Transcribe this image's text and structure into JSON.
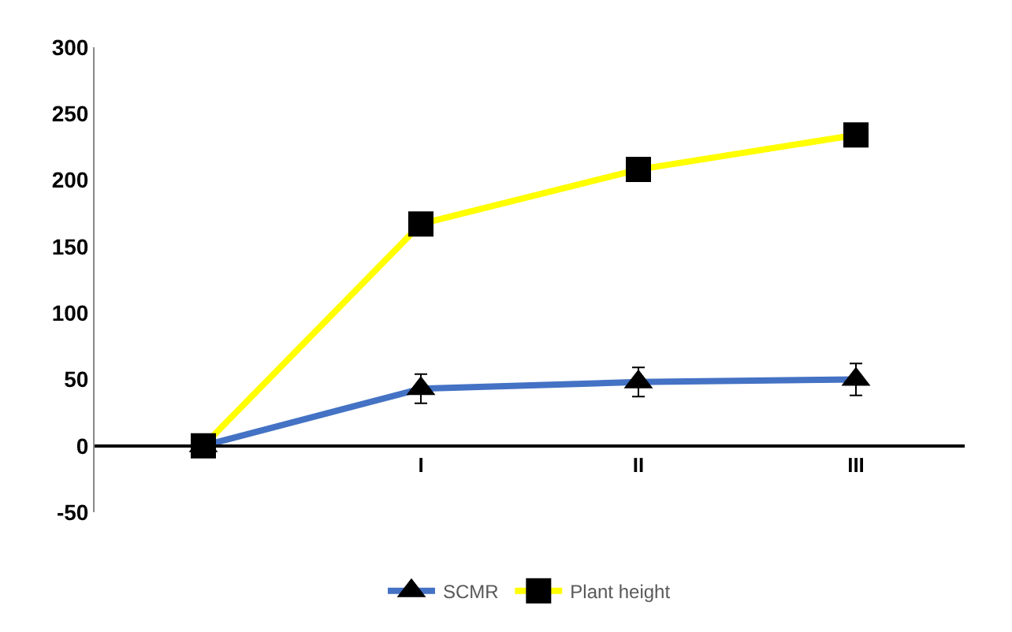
{
  "chart_data": {
    "type": "line",
    "categories": [
      null,
      "I",
      "II",
      "III"
    ],
    "ylim": [
      -50,
      300
    ],
    "yticks": [
      -50,
      0,
      50,
      100,
      150,
      200,
      250,
      300
    ],
    "legend": "bottom",
    "series": [
      {
        "name": "SCMR",
        "color": "#4472c4",
        "marker": "triangle",
        "values": [
          0,
          43,
          48,
          50
        ],
        "errors": [
          null,
          11,
          11,
          12
        ]
      },
      {
        "name": "Plant height",
        "color": "#ffff00",
        "marker": "square",
        "values": [
          0,
          167,
          208,
          234
        ]
      }
    ]
  }
}
